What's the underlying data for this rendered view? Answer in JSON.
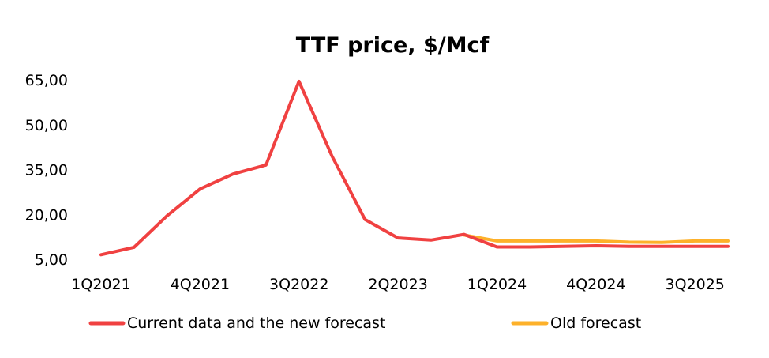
{
  "chart_data": {
    "type": "line",
    "title": "TTF price, $/Mcf",
    "xlabel": "",
    "ylabel": "",
    "ylim": [
      5,
      65
    ],
    "y_ticks": [
      5,
      20,
      35,
      50,
      65
    ],
    "y_tick_labels": [
      "5,00",
      "20,00",
      "35,00",
      "50,00",
      "65,00"
    ],
    "categories": [
      "1Q2021",
      "2Q2021",
      "3Q2021",
      "4Q2021",
      "1Q2022",
      "2Q2022",
      "3Q2022",
      "4Q2022",
      "1Q2023",
      "2Q2023",
      "3Q2023",
      "4Q2023",
      "1Q2024",
      "2Q2024",
      "3Q2024",
      "4Q2024",
      "1Q2025",
      "2Q2025",
      "3Q2025",
      "4Q2025"
    ],
    "x_tick_labels": [
      {
        "category": "1Q2021",
        "label": "1Q2021"
      },
      {
        "category": "4Q2021",
        "label": "4Q2021"
      },
      {
        "category": "3Q2022",
        "label": "3Q2022"
      },
      {
        "category": "2Q2023",
        "label": "2Q2023"
      },
      {
        "category": "1Q2024",
        "label": "1Q2024"
      },
      {
        "category": "4Q2024",
        "label": "4Q2024"
      },
      {
        "category": "3Q2025",
        "label": "3Q2025"
      }
    ],
    "series": [
      {
        "name": "Old forecast",
        "color": "#FDB12A",
        "values": [
          null,
          null,
          null,
          null,
          null,
          null,
          null,
          null,
          null,
          null,
          null,
          13.1,
          11.1,
          11.1,
          11.1,
          11.1,
          10.7,
          10.6,
          11.1,
          11.1
        ]
      },
      {
        "name": "Current data and the new forecast",
        "color": "#F04141",
        "values": [
          6.5,
          9.0,
          19.5,
          28.5,
          33.5,
          36.5,
          64.5,
          39.5,
          18.3,
          12.1,
          11.4,
          13.3,
          9.1,
          9.1,
          9.3,
          9.5,
          9.3,
          9.3,
          9.3,
          9.3
        ]
      }
    ],
    "legend": {
      "position": "bottom",
      "entries": [
        {
          "label": "Current data and the new forecast",
          "color": "#F04141"
        },
        {
          "label": "Old forecast",
          "color": "#FDB12A"
        }
      ]
    },
    "grid": false
  }
}
